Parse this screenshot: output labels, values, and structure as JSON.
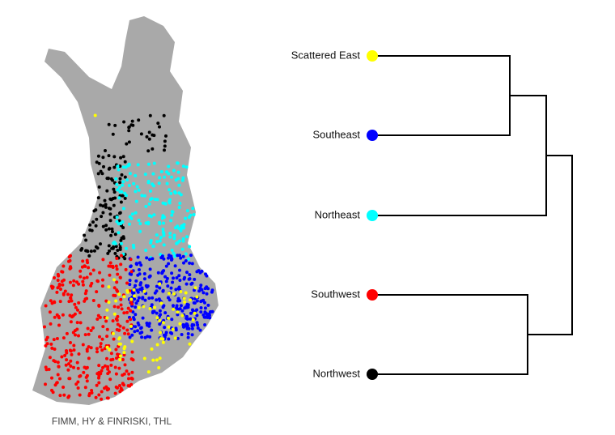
{
  "map": {
    "caption": "FIMM, HY & FINRISKI, THL"
  },
  "dendrogram": {
    "leaves": [
      {
        "label": "Scattered East",
        "color": "#ffff00"
      },
      {
        "label": "Southeast",
        "color": "#0000ff"
      },
      {
        "label": "Northeast",
        "color": "#00ffff"
      },
      {
        "label": "Southwest",
        "color": "#ff0000"
      },
      {
        "label": "Northwest",
        "color": "#000000"
      }
    ]
  }
}
